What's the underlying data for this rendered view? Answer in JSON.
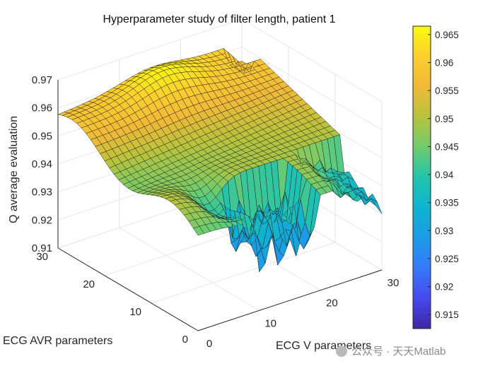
{
  "chart_data": {
    "type": "surface",
    "title": "Hyperparameter study of filter length, patient 1",
    "xlabel": "ECG V parameters",
    "ylabel": "ECG AVR parameters",
    "zlabel": "Q average evaluation",
    "xlim": [
      0,
      30
    ],
    "ylim": [
      0,
      30
    ],
    "zlim": [
      0.91,
      0.97
    ],
    "x_ticks": [
      "0",
      "10",
      "20",
      "30"
    ],
    "y_ticks": [
      "0",
      "10",
      "20",
      "30"
    ],
    "z_ticks": [
      "0.91",
      "0.92",
      "0.93",
      "0.94",
      "0.95",
      "0.96",
      "0.97"
    ],
    "colormap": "parula",
    "colorbar": {
      "range": [
        0.9125,
        0.9665
      ],
      "ticks": [
        "0.915",
        "0.92",
        "0.925",
        "0.93",
        "0.935",
        "0.94",
        "0.945",
        "0.95",
        "0.955",
        "0.96",
        "0.965"
      ]
    },
    "surface_profile": {
      "description": "Sampled values of the surface (Q average evaluation) over the (ECG V, ECG AVR) grid",
      "x": [
        0,
        10,
        20,
        30
      ],
      "y": [
        5,
        15,
        25,
        30
      ],
      "z": [
        [
          0.947,
          0.951,
          0.955,
          0.958
        ],
        [
          0.945,
          0.953,
          0.962,
          0.964
        ],
        [
          0.928,
          0.948,
          0.96,
          0.962
        ],
        [
          0.938,
          0.944,
          0.952,
          0.956
        ]
      ],
      "peak_value": 0.9665,
      "min_value": 0.9125
    }
  },
  "watermark": "公众号 · 天天Matlab"
}
